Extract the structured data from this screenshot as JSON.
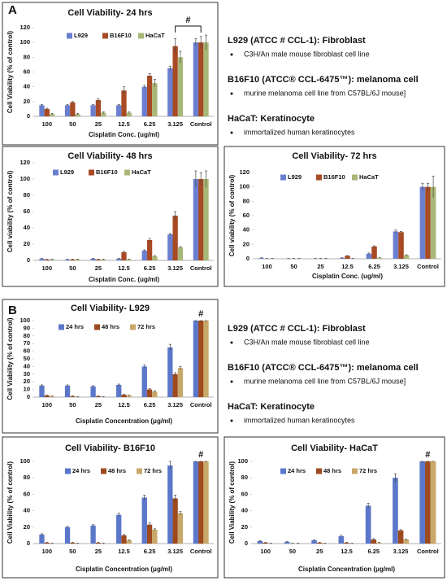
{
  "chart_data": [
    {
      "type": "bar",
      "title": "Cell Viability- 24 hrs",
      "y_label": "Cell Viability (% of control)",
      "x_label": "Cisplatin Conc. (ug/ml)",
      "categories": [
        "100",
        "50",
        "25",
        "12.5",
        "6.25",
        "3.125",
        "Control"
      ],
      "ylim": [
        0,
        120
      ],
      "yticks": [
        0,
        20,
        40,
        60,
        80,
        100,
        120
      ],
      "annotation": "#",
      "series": [
        {
          "name": "L929",
          "color": "#6b7fd0",
          "values": [
            15,
            15,
            15,
            15,
            40,
            65,
            100
          ],
          "errors": [
            1,
            1,
            1,
            1,
            2,
            3,
            5
          ]
        },
        {
          "name": "B16F10",
          "color": "#a84a24",
          "values": [
            10,
            19,
            22,
            35,
            55,
            95,
            100
          ],
          "errors": [
            1,
            1,
            2,
            5,
            3,
            10,
            8
          ]
        },
        {
          "name": "HaCaT",
          "color": "#a9b878",
          "values": [
            3,
            3,
            5,
            5,
            45,
            80,
            100
          ],
          "errors": [
            1,
            1,
            1,
            1,
            5,
            8,
            10
          ]
        }
      ]
    },
    {
      "type": "bar",
      "title": "Cell Viability- 48 hrs",
      "y_label": "Cell viability (% of control)",
      "x_label": "Cisplatin Conc. (ug/ml)",
      "categories": [
        "100",
        "50",
        "25",
        "12.5",
        "6.25",
        "3.125",
        "Control"
      ],
      "ylim": [
        0,
        120
      ],
      "yticks": [
        0,
        20,
        40,
        60,
        80,
        100,
        120
      ],
      "series": [
        {
          "name": "L929",
          "color": "#6b7fd0",
          "values": [
            2,
            1,
            2,
            2,
            12,
            32,
            100
          ],
          "errors": [
            0.5,
            0.5,
            0.5,
            0.5,
            1,
            1,
            10
          ]
        },
        {
          "name": "B16F10",
          "color": "#a84a24",
          "values": [
            1,
            1,
            1,
            10,
            25,
            55,
            100
          ],
          "errors": [
            0.5,
            0.5,
            0.5,
            1,
            2,
            5,
            8
          ]
        },
        {
          "name": "HaCaT",
          "color": "#a9b878",
          "values": [
            1,
            1,
            1,
            1,
            5,
            16,
            100
          ],
          "errors": [
            0.5,
            0.5,
            0.5,
            0.5,
            1,
            1,
            10
          ]
        }
      ]
    },
    {
      "type": "bar",
      "title": "Cell Viability- 72 hrs",
      "y_label": "Cell viability (% of control)",
      "x_label": "Cisplatin Conc. (ug/ml)",
      "categories": [
        "100",
        "50",
        "25",
        "12.5",
        "6.25",
        "3.125",
        "Control"
      ],
      "ylim": [
        0,
        120
      ],
      "yticks": [
        0,
        20,
        40,
        60,
        80,
        100,
        120
      ],
      "series": [
        {
          "name": "L929",
          "color": "#6b7fd0",
          "values": [
            1,
            0,
            0,
            1,
            7,
            38,
            100
          ],
          "errors": [
            0.5,
            0.5,
            0.5,
            0.5,
            1,
            2,
            5
          ]
        },
        {
          "name": "B16F10",
          "color": "#a84a24",
          "values": [
            0,
            0,
            0,
            4,
            17,
            37,
            100
          ],
          "errors": [
            0.5,
            0.5,
            0.5,
            0.5,
            1,
            1,
            5
          ]
        },
        {
          "name": "HaCaT",
          "color": "#a9b878",
          "values": [
            0,
            0,
            0,
            0,
            1,
            5,
            100
          ],
          "errors": [
            0.5,
            0.5,
            0.5,
            0.5,
            0.5,
            0.5,
            15
          ]
        }
      ]
    },
    {
      "type": "bar",
      "title": "Cell Viability- L929",
      "y_label": "Cell Viability (% of control)",
      "x_label": "Cisplatin Concentration (μg/ml)",
      "categories": [
        "100",
        "50",
        "25",
        "12.5",
        "6.25",
        "3.125",
        "Control"
      ],
      "ylim": [
        0,
        100
      ],
      "yticks": [
        0,
        10,
        20,
        30,
        40,
        50,
        60,
        70,
        80,
        90,
        100
      ],
      "annotation": "#",
      "series": [
        {
          "name": "24 hrs",
          "color": "#5b77c9",
          "values": [
            15,
            15,
            14,
            16,
            40,
            65,
            100
          ],
          "errors": [
            1,
            1,
            1,
            1,
            2,
            4,
            0
          ]
        },
        {
          "name": "48 hrs",
          "color": "#9e4a1e",
          "values": [
            2,
            1,
            1,
            3,
            10,
            30,
            100
          ],
          "errors": [
            0.5,
            0.5,
            0.5,
            0.5,
            1,
            2,
            0
          ]
        },
        {
          "name": "72 hrs",
          "color": "#c8a86a",
          "values": [
            1,
            0,
            0,
            2,
            7,
            38,
            100
          ],
          "errors": [
            0.5,
            0.5,
            0.5,
            0.5,
            1,
            2,
            0
          ]
        }
      ]
    },
    {
      "type": "bar",
      "title": "Cell Viability- B16F10",
      "y_label": "Cell Viability (% of control)",
      "x_label": "Cisplatin Concentration (μg/ml)",
      "categories": [
        "100",
        "50",
        "25",
        "12.5",
        "6.25",
        "3.125",
        "Control"
      ],
      "ylim": [
        0,
        100
      ],
      "yticks": [
        0,
        20,
        40,
        60,
        80,
        100
      ],
      "annotation": "#",
      "series": [
        {
          "name": "24 hrs",
          "color": "#5b77c9",
          "values": [
            11,
            20,
            22,
            35,
            56,
            95,
            100
          ],
          "errors": [
            1,
            1,
            1,
            2,
            3,
            5,
            0
          ]
        },
        {
          "name": "48 hrs",
          "color": "#9e4a1e",
          "values": [
            1,
            1,
            1,
            10,
            23,
            55,
            100
          ],
          "errors": [
            0.5,
            0.5,
            0.5,
            1,
            2,
            4,
            0
          ]
        },
        {
          "name": "72 hrs",
          "color": "#c8a86a",
          "values": [
            0,
            0,
            0,
            4,
            17,
            37,
            100
          ],
          "errors": [
            0.5,
            0.5,
            0.5,
            0.5,
            1,
            2,
            0
          ]
        }
      ]
    },
    {
      "type": "bar",
      "title": "Cell Viability- HaCaT",
      "y_label": "Cell Viability (% of control)",
      "x_label": "Cisplatin Concentration (μg/ml)",
      "categories": [
        "100",
        "50",
        "25",
        "12.5",
        "6.25",
        "3.125",
        "Control"
      ],
      "ylim": [
        0,
        100
      ],
      "yticks": [
        0,
        20,
        40,
        60,
        80,
        100
      ],
      "annotation": "#",
      "series": [
        {
          "name": "24 hrs",
          "color": "#5b77c9",
          "values": [
            3,
            2,
            4,
            9,
            46,
            80,
            100
          ],
          "errors": [
            0.5,
            0.5,
            0.5,
            1,
            3,
            5,
            0
          ]
        },
        {
          "name": "48 hrs",
          "color": "#9e4a1e",
          "values": [
            1,
            0,
            1,
            1,
            5,
            16,
            100
          ],
          "errors": [
            0.5,
            0.5,
            0.5,
            0.5,
            1,
            1,
            0
          ]
        },
        {
          "name": "72 hrs",
          "color": "#c8a86a",
          "values": [
            0,
            0,
            0,
            0,
            1,
            5,
            100
          ],
          "errors": [
            0.5,
            0.5,
            0.5,
            0.5,
            0.5,
            0.5,
            0
          ]
        }
      ]
    }
  ],
  "notes": [
    {
      "label": "A",
      "items": [
        {
          "heading": "L929 (ATCC # CCL-1): Fibroblast",
          "bullet": "C3H/An male mouse fibroblast cell line"
        },
        {
          "heading": "B16F10 (ATCC® CCL-6475™): melanoma cell",
          "bullet": "murine melanoma cell line from C57BL/6J mouse]"
        },
        {
          "heading": "HaCaT: Keratinocyte",
          "bullet": "immortalized human keratinocytes"
        }
      ]
    },
    {
      "label": "B",
      "items": [
        {
          "heading": "L929 (ATCC # CCL-1): Fibroblast",
          "bullet": "C3H/An male mouse fibroblast cell line"
        },
        {
          "heading": "B16F10 (ATCC® CCL-6475™): melanoma cell",
          "bullet": "murine melanoma cell line from C57BL/6J mouse]"
        },
        {
          "heading": "HaCaT: Keratinocyte",
          "bullet": "immortalized human keratinocytes"
        }
      ]
    }
  ]
}
